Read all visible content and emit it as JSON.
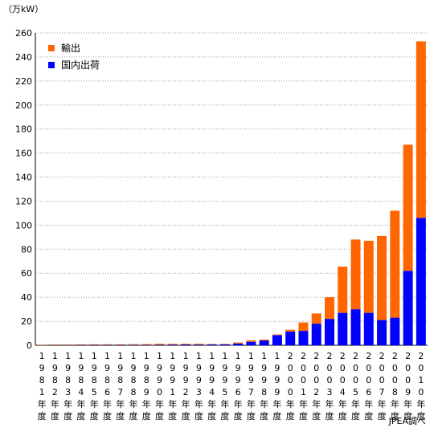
{
  "unit_label": "（万kW）",
  "source_note": "JPEA調べ",
  "chart_data": {
    "type": "bar",
    "stacked": true,
    "categories": [
      "1981年度",
      "1982年度",
      "1983年度",
      "1984年度",
      "1985年度",
      "1986年度",
      "1987年度",
      "1988年度",
      "1989年度",
      "1990年度",
      "1991年度",
      "1992年度",
      "1993年度",
      "1994年度",
      "1995年度",
      "1996年度",
      "1997年度",
      "1998年度",
      "1999年度",
      "2000年度",
      "2001年度",
      "2002年度",
      "2003年度",
      "2004年度",
      "2005年度",
      "2006年度",
      "2007年度",
      "2008年度",
      "2009年度",
      "2010年度"
    ],
    "category_display": [
      [
        "1",
        "9",
        "8",
        "1",
        "年",
        "度"
      ],
      [
        "1",
        "9",
        "8",
        "2",
        "年",
        "度"
      ],
      [
        "1",
        "9",
        "8",
        "3",
        "年",
        "度"
      ],
      [
        "1",
        "9",
        "8",
        "4",
        "年",
        "度"
      ],
      [
        "1",
        "9",
        "8",
        "5",
        "年",
        "度"
      ],
      [
        "1",
        "9",
        "8",
        "6",
        "年",
        "度"
      ],
      [
        "1",
        "9",
        "8",
        "7",
        "年",
        "度"
      ],
      [
        "1",
        "9",
        "8",
        "8",
        "年",
        "度"
      ],
      [
        "1",
        "9",
        "8",
        "9",
        "年",
        "度"
      ],
      [
        "1",
        "9",
        "9",
        "0",
        "年",
        "度"
      ],
      [
        "1",
        "9",
        "9",
        "1",
        "年",
        "度"
      ],
      [
        "1",
        "9",
        "9",
        "2",
        "年",
        "度"
      ],
      [
        "1",
        "9",
        "9",
        "3",
        "年",
        "度"
      ],
      [
        "1",
        "9",
        "9",
        "4",
        "年",
        "度"
      ],
      [
        "1",
        "9",
        "9",
        "5",
        "年",
        "度"
      ],
      [
        "1",
        "9",
        "9",
        "6",
        "年",
        "度"
      ],
      [
        "1",
        "9",
        "9",
        "7",
        "年",
        "度"
      ],
      [
        "1",
        "9",
        "9",
        "8",
        "年",
        "度"
      ],
      [
        "1",
        "9",
        "9",
        "9",
        "年",
        "度"
      ],
      [
        "2",
        "0",
        "0",
        "0",
        "年",
        "度"
      ],
      [
        "2",
        "0",
        "0",
        "1",
        "年",
        "度"
      ],
      [
        "2",
        "0",
        "0",
        "2",
        "年",
        "度"
      ],
      [
        "2",
        "0",
        "0",
        "3",
        "年",
        "度"
      ],
      [
        "2",
        "0",
        "0",
        "4",
        "年",
        "度"
      ],
      [
        "2",
        "0",
        "0",
        "5",
        "年",
        "度"
      ],
      [
        "2",
        "0",
        "0",
        "6",
        "年",
        "度"
      ],
      [
        "2",
        "0",
        "0",
        "7",
        "年",
        "度"
      ],
      [
        "2",
        "0",
        "0",
        "8",
        "年",
        "度"
      ],
      [
        "2",
        "0",
        "0",
        "9",
        "年",
        "度"
      ],
      [
        "2",
        "0",
        "1",
        "0",
        "年",
        "度"
      ]
    ],
    "series": [
      {
        "name": "国内出荷",
        "color": "#0000ff",
        "values": [
          0.1,
          0.2,
          0.2,
          0.3,
          0.3,
          0.3,
          0.3,
          0.3,
          0.4,
          0.5,
          0.6,
          0.7,
          0.6,
          0.7,
          0.8,
          1.5,
          2.9,
          4.0,
          8.5,
          11.4,
          12.0,
          18.0,
          22.0,
          27.0,
          30.0,
          27.0,
          21.0,
          23.0,
          62.0,
          106.0
        ]
      },
      {
        "name": "輸出",
        "color": "#ff6600",
        "values": [
          0.3,
          0.4,
          0.4,
          0.4,
          0.5,
          0.5,
          0.5,
          0.6,
          0.6,
          0.8,
          0.6,
          0.6,
          0.7,
          0.4,
          0.4,
          0.8,
          1.2,
          0.7,
          0.5,
          1.5,
          7.0,
          8.5,
          18.0,
          38.5,
          58.0,
          60.0,
          70.0,
          89.0,
          105.0,
          147.0
        ]
      }
    ],
    "legend_order": [
      "輸出",
      "国内出荷"
    ],
    "legend_position": "top-left",
    "ylim": [
      0,
      260
    ],
    "yticks": [
      0,
      20,
      40,
      60,
      80,
      100,
      120,
      140,
      160,
      180,
      200,
      220,
      240,
      260
    ],
    "grid": true
  }
}
